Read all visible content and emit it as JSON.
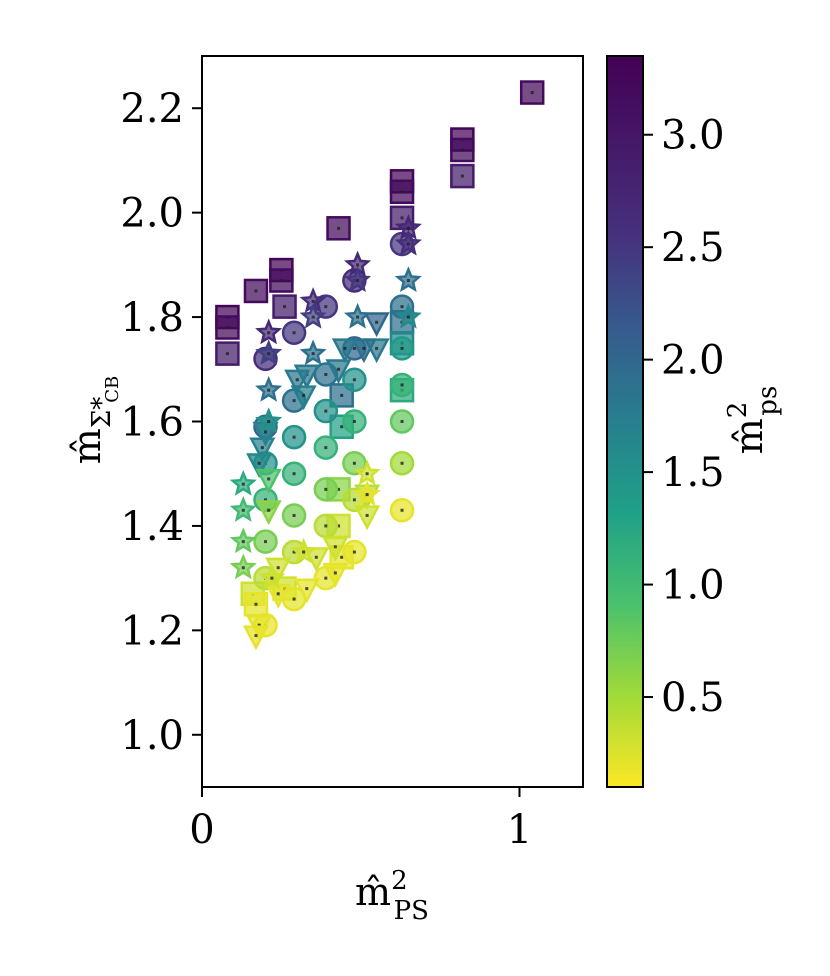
{
  "chart_data": {
    "type": "scatter",
    "xlabel": {
      "base": "m̂",
      "sup": "2",
      "sub": "PS"
    },
    "ylabel": {
      "base": "m̂",
      "sub": "Σ*",
      "subsub": "CB"
    },
    "xlim": [
      0,
      1.2
    ],
    "ylim": [
      0.9,
      2.3
    ],
    "xticks": [
      0,
      1
    ],
    "yticks": [
      1.0,
      1.2,
      1.4,
      1.6,
      1.8,
      2.0,
      2.2
    ],
    "xtick_labels": [
      "0",
      "1"
    ],
    "ytick_labels": [
      "1.0",
      "1.2",
      "1.4",
      "1.6",
      "1.8",
      "2.0",
      "2.2"
    ],
    "grid": false,
    "colorbar": {
      "label": {
        "base": "m̂",
        "sup": "2",
        "sub": "ps"
      },
      "range": [
        0.1,
        3.35
      ],
      "ticks": [
        0.5,
        1.0,
        1.5,
        2.0,
        2.5,
        3.0
      ],
      "tick_labels": [
        "0.5",
        "1.0",
        "1.5",
        "2.0",
        "2.5",
        "3.0"
      ],
      "colormap": "viridis_r"
    },
    "series": [
      {
        "marker": "square",
        "points": [
          {
            "x": 0.08,
            "y": 1.8,
            "c": 3.3
          },
          {
            "x": 0.08,
            "y": 1.78,
            "c": 3.2
          },
          {
            "x": 0.08,
            "y": 1.73,
            "c": 2.9
          },
          {
            "x": 0.17,
            "y": 1.85,
            "c": 3.2
          },
          {
            "x": 0.25,
            "y": 1.89,
            "c": 3.3
          },
          {
            "x": 0.25,
            "y": 1.87,
            "c": 3.2
          },
          {
            "x": 0.26,
            "y": 1.82,
            "c": 2.9
          },
          {
            "x": 0.43,
            "y": 1.97,
            "c": 3.2
          },
          {
            "x": 0.63,
            "y": 2.06,
            "c": 3.3
          },
          {
            "x": 0.63,
            "y": 2.04,
            "c": 3.2
          },
          {
            "x": 0.63,
            "y": 1.99,
            "c": 2.9
          },
          {
            "x": 0.82,
            "y": 2.14,
            "c": 3.3
          },
          {
            "x": 0.82,
            "y": 2.12,
            "c": 3.2
          },
          {
            "x": 0.82,
            "y": 2.07,
            "c": 2.9
          },
          {
            "x": 1.04,
            "y": 2.23,
            "c": 3.2
          },
          {
            "x": 0.63,
            "y": 1.79,
            "c": 1.9
          },
          {
            "x": 0.63,
            "y": 1.75,
            "c": 1.6
          },
          {
            "x": 0.63,
            "y": 1.66,
            "c": 1.2
          },
          {
            "x": 0.44,
            "y": 1.65,
            "c": 1.9
          },
          {
            "x": 0.44,
            "y": 1.59,
            "c": 1.3
          },
          {
            "x": 0.43,
            "y": 1.47,
            "c": 0.6
          },
          {
            "x": 0.43,
            "y": 1.4,
            "c": 0.3
          },
          {
            "x": 0.44,
            "y": 1.34,
            "c": 0.2
          },
          {
            "x": 0.16,
            "y": 1.27,
            "c": 0.3
          },
          {
            "x": 0.17,
            "y": 1.25,
            "c": 0.2
          },
          {
            "x": 0.26,
            "y": 1.28,
            "c": 0.3
          }
        ]
      },
      {
        "marker": "circle",
        "points": [
          {
            "x": 0.63,
            "y": 1.94,
            "c": 2.5
          },
          {
            "x": 0.63,
            "y": 1.82,
            "c": 1.9
          },
          {
            "x": 0.63,
            "y": 1.74,
            "c": 1.4
          },
          {
            "x": 0.63,
            "y": 1.67,
            "c": 1.1
          },
          {
            "x": 0.63,
            "y": 1.6,
            "c": 0.8
          },
          {
            "x": 0.63,
            "y": 1.52,
            "c": 0.5
          },
          {
            "x": 0.63,
            "y": 1.43,
            "c": 0.2
          },
          {
            "x": 0.48,
            "y": 1.87,
            "c": 2.6
          },
          {
            "x": 0.48,
            "y": 1.74,
            "c": 2.0
          },
          {
            "x": 0.48,
            "y": 1.68,
            "c": 1.5
          },
          {
            "x": 0.48,
            "y": 1.6,
            "c": 1.1
          },
          {
            "x": 0.48,
            "y": 1.52,
            "c": 0.7
          },
          {
            "x": 0.48,
            "y": 1.45,
            "c": 0.4
          },
          {
            "x": 0.48,
            "y": 1.35,
            "c": 0.2
          },
          {
            "x": 0.39,
            "y": 1.82,
            "c": 2.5
          },
          {
            "x": 0.39,
            "y": 1.69,
            "c": 1.9
          },
          {
            "x": 0.39,
            "y": 1.62,
            "c": 1.5
          },
          {
            "x": 0.39,
            "y": 1.55,
            "c": 1.1
          },
          {
            "x": 0.39,
            "y": 1.47,
            "c": 0.7
          },
          {
            "x": 0.39,
            "y": 1.4,
            "c": 0.4
          },
          {
            "x": 0.39,
            "y": 1.3,
            "c": 0.2
          },
          {
            "x": 0.29,
            "y": 1.77,
            "c": 2.5
          },
          {
            "x": 0.29,
            "y": 1.64,
            "c": 1.9
          },
          {
            "x": 0.29,
            "y": 1.57,
            "c": 1.5
          },
          {
            "x": 0.29,
            "y": 1.5,
            "c": 1.1
          },
          {
            "x": 0.29,
            "y": 1.42,
            "c": 0.7
          },
          {
            "x": 0.29,
            "y": 1.35,
            "c": 0.4
          },
          {
            "x": 0.29,
            "y": 1.26,
            "c": 0.2
          },
          {
            "x": 0.2,
            "y": 1.72,
            "c": 2.6
          },
          {
            "x": 0.2,
            "y": 1.59,
            "c": 2.0
          },
          {
            "x": 0.2,
            "y": 1.52,
            "c": 1.5
          },
          {
            "x": 0.2,
            "y": 1.45,
            "c": 1.1
          },
          {
            "x": 0.2,
            "y": 1.37,
            "c": 0.7
          },
          {
            "x": 0.2,
            "y": 1.3,
            "c": 0.4
          },
          {
            "x": 0.2,
            "y": 1.21,
            "c": 0.2
          }
        ]
      },
      {
        "marker": "triangle-down",
        "points": [
          {
            "x": 0.55,
            "y": 1.79,
            "c": 2.0
          },
          {
            "x": 0.55,
            "y": 1.74,
            "c": 1.8
          },
          {
            "x": 0.51,
            "y": 1.74,
            "c": 1.9
          },
          {
            "x": 0.45,
            "y": 1.74,
            "c": 1.8
          },
          {
            "x": 0.43,
            "y": 1.7,
            "c": 1.8
          },
          {
            "x": 0.33,
            "y": 1.69,
            "c": 1.8
          },
          {
            "x": 0.32,
            "y": 1.65,
            "c": 1.7
          },
          {
            "x": 0.3,
            "y": 1.68,
            "c": 1.8
          },
          {
            "x": 0.2,
            "y": 1.58,
            "c": 1.7
          },
          {
            "x": 0.19,
            "y": 1.55,
            "c": 1.7
          },
          {
            "x": 0.18,
            "y": 1.52,
            "c": 1.6
          },
          {
            "x": 0.21,
            "y": 1.49,
            "c": 0.9
          },
          {
            "x": 0.21,
            "y": 1.43,
            "c": 0.6
          },
          {
            "x": 0.52,
            "y": 1.46,
            "c": 0.4
          },
          {
            "x": 0.52,
            "y": 1.42,
            "c": 0.3
          },
          {
            "x": 0.42,
            "y": 1.36,
            "c": 0.3
          },
          {
            "x": 0.42,
            "y": 1.31,
            "c": 0.2
          },
          {
            "x": 0.36,
            "y": 1.34,
            "c": 0.3
          },
          {
            "x": 0.33,
            "y": 1.28,
            "c": 0.2
          },
          {
            "x": 0.24,
            "y": 1.32,
            "c": 0.3
          },
          {
            "x": 0.24,
            "y": 1.27,
            "c": 0.2
          },
          {
            "x": 0.18,
            "y": 1.21,
            "c": 0.2
          },
          {
            "x": 0.17,
            "y": 1.19,
            "c": 0.2
          }
        ]
      },
      {
        "marker": "star",
        "points": [
          {
            "x": 0.65,
            "y": 1.97,
            "c": 2.7
          },
          {
            "x": 0.65,
            "y": 1.94,
            "c": 2.6
          },
          {
            "x": 0.65,
            "y": 1.87,
            "c": 1.9
          },
          {
            "x": 0.65,
            "y": 1.8,
            "c": 1.6
          },
          {
            "x": 0.49,
            "y": 1.9,
            "c": 2.7
          },
          {
            "x": 0.49,
            "y": 1.87,
            "c": 2.5
          },
          {
            "x": 0.49,
            "y": 1.8,
            "c": 1.9
          },
          {
            "x": 0.35,
            "y": 1.83,
            "c": 2.6
          },
          {
            "x": 0.35,
            "y": 1.8,
            "c": 2.4
          },
          {
            "x": 0.35,
            "y": 1.73,
            "c": 1.9
          },
          {
            "x": 0.21,
            "y": 1.77,
            "c": 2.7
          },
          {
            "x": 0.21,
            "y": 1.73,
            "c": 2.4
          },
          {
            "x": 0.21,
            "y": 1.66,
            "c": 1.9
          },
          {
            "x": 0.21,
            "y": 1.6,
            "c": 1.5
          },
          {
            "x": 0.13,
            "y": 1.48,
            "c": 1.2
          },
          {
            "x": 0.13,
            "y": 1.43,
            "c": 1.0
          },
          {
            "x": 0.13,
            "y": 1.37,
            "c": 0.8
          },
          {
            "x": 0.13,
            "y": 1.32,
            "c": 0.7
          },
          {
            "x": 0.52,
            "y": 1.5,
            "c": 0.3
          },
          {
            "x": 0.52,
            "y": 1.46,
            "c": 0.2
          },
          {
            "x": 0.32,
            "y": 1.35,
            "c": 0.3
          },
          {
            "x": 0.22,
            "y": 1.3,
            "c": 0.3
          }
        ]
      }
    ]
  }
}
